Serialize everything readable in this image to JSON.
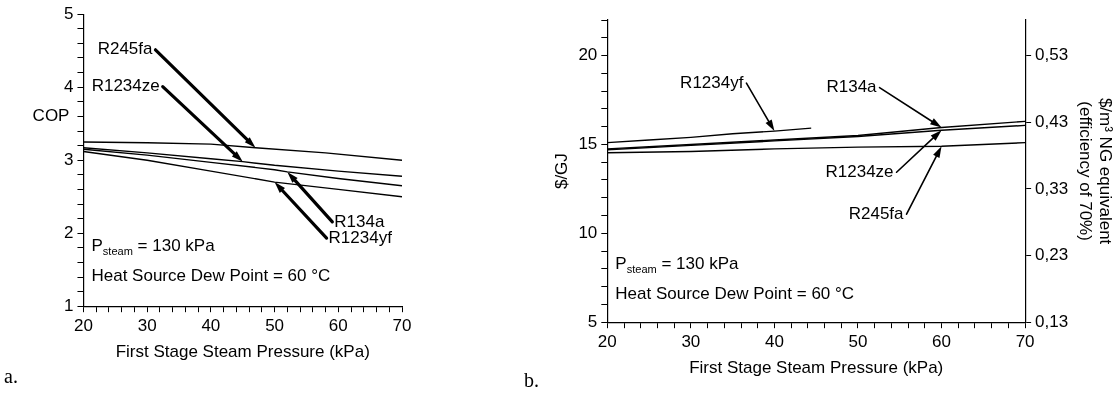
{
  "chart_data": [
    {
      "type": "line",
      "xlabel": "First Stage Steam Pressure (kPa)",
      "ylabel": "COP",
      "xlim": [
        20,
        70
      ],
      "ylim": [
        1,
        5
      ],
      "xticks": [
        20,
        {
          "value": 22,
          "label": null
        },
        {
          "value": 24,
          "label": null
        },
        {
          "value": 26,
          "label": null
        },
        {
          "value": 28,
          "label": null
        },
        30,
        {
          "value": 32,
          "label": null
        },
        {
          "value": 34,
          "label": null
        },
        {
          "value": 36,
          "label": null
        },
        {
          "value": 38,
          "label": null
        },
        40,
        {
          "value": 42,
          "label": null
        },
        {
          "value": 44,
          "label": null
        },
        {
          "value": 46,
          "label": null
        },
        {
          "value": 48,
          "label": null
        },
        50,
        {
          "value": 52,
          "label": null
        },
        {
          "value": 54,
          "label": null
        },
        {
          "value": 56,
          "label": null
        },
        {
          "value": 58,
          "label": null
        },
        60,
        {
          "value": 62,
          "label": null
        },
        {
          "value": 64,
          "label": null
        },
        {
          "value": 66,
          "label": null
        },
        {
          "value": 68,
          "label": null
        },
        70
      ],
      "yticks": [
        1,
        {
          "value": 1.2,
          "label": null
        },
        {
          "value": 1.4,
          "label": null
        },
        {
          "value": 1.6,
          "label": null
        },
        {
          "value": 1.8,
          "label": null
        },
        2,
        {
          "value": 2.2,
          "label": null
        },
        {
          "value": 2.4,
          "label": null
        },
        {
          "value": 2.6,
          "label": null
        },
        {
          "value": 2.8,
          "label": null
        },
        3,
        {
          "value": 3.2,
          "label": null
        },
        {
          "value": 3.4,
          "label": null
        },
        {
          "value": 3.6,
          "label": null
        },
        {
          "value": 3.8,
          "label": null
        },
        4,
        {
          "value": 4.2,
          "label": null
        },
        {
          "value": 4.4,
          "label": null
        },
        {
          "value": 4.6,
          "label": null
        },
        {
          "value": 4.8,
          "label": null
        },
        5
      ],
      "series": [
        {
          "name": "R245fa",
          "color": "#000000",
          "x": [
            20,
            30,
            40,
            47,
            58,
            70
          ],
          "values": [
            3.25,
            3.24,
            3.22,
            3.17,
            3.1,
            3.0
          ]
        },
        {
          "name": "R1234ze",
          "color": "#000000",
          "x": [
            20,
            30,
            40,
            45,
            50,
            60,
            70
          ],
          "values": [
            3.17,
            3.1,
            3.02,
            2.98,
            2.93,
            2.85,
            2.78
          ]
        },
        {
          "name": "R134a",
          "color": "#000000",
          "x": [
            20,
            30,
            40,
            50,
            52,
            60,
            70
          ],
          "values": [
            3.15,
            3.07,
            2.97,
            2.87,
            2.84,
            2.75,
            2.65
          ]
        },
        {
          "name": "R1234yf",
          "color": "#000000",
          "x": [
            20,
            30,
            40,
            50,
            60,
            70
          ],
          "values": [
            3.12,
            3.0,
            2.85,
            2.7,
            2.6,
            2.5
          ]
        }
      ],
      "annotations": [
        "P$_{steam}$ = 130 kPa",
        "Heat Source Dew Point = 60 °C",
        "a."
      ],
      "grid": false,
      "legend": false,
      "marker": "none",
      "line_style": "solid"
    },
    {
      "type": "line",
      "xlabel": "First Stage Steam Pressure (kPa)",
      "ylabel": "$/GJ",
      "y2label": "$/m³ NG equivalent\n(efficiency of 70%)",
      "xlim": [
        20,
        70
      ],
      "ylim": [
        5,
        22
      ],
      "y2lim": [
        0.13,
        0.5833
      ],
      "xticks": [
        20,
        {
          "value": 22,
          "label": null
        },
        {
          "value": 24,
          "label": null
        },
        {
          "value": 26,
          "label": null
        },
        {
          "value": 28,
          "label": null
        },
        30,
        {
          "value": 32,
          "label": null
        },
        {
          "value": 34,
          "label": null
        },
        {
          "value": 36,
          "label": null
        },
        {
          "value": 38,
          "label": null
        },
        40,
        {
          "value": 42,
          "label": null
        },
        {
          "value": 44,
          "label": null
        },
        {
          "value": 46,
          "label": null
        },
        {
          "value": 48,
          "label": null
        },
        50,
        {
          "value": 52,
          "label": null
        },
        {
          "value": 54,
          "label": null
        },
        {
          "value": 56,
          "label": null
        },
        {
          "value": 58,
          "label": null
        },
        60,
        {
          "value": 62,
          "label": null
        },
        {
          "value": 64,
          "label": null
        },
        {
          "value": 66,
          "label": null
        },
        {
          "value": 68,
          "label": null
        },
        70
      ],
      "yticks": [
        5,
        {
          "value": 6,
          "label": null
        },
        {
          "value": 7,
          "label": null
        },
        {
          "value": 8,
          "label": null
        },
        {
          "value": 9,
          "label": null
        },
        10,
        {
          "value": 11,
          "label": null
        },
        {
          "value": 12,
          "label": null
        },
        {
          "value": 13,
          "label": null
        },
        {
          "value": 14,
          "label": null
        },
        15,
        {
          "value": 16,
          "label": null
        },
        {
          "value": 17,
          "label": null
        },
        {
          "value": 18,
          "label": null
        },
        {
          "value": 19,
          "label": null
        },
        20,
        {
          "value": 21,
          "label": null
        },
        {
          "value": 22,
          "label": null
        }
      ],
      "y2ticks": [
        {
          "value": 0.13,
          "label": "0,13"
        },
        {
          "value": 0.23,
          "label": "0,23"
        },
        {
          "value": 0.33,
          "label": "0,33"
        },
        {
          "value": 0.43,
          "label": "0,43"
        },
        {
          "value": 0.53,
          "label": "0,53"
        }
      ],
      "series": [
        {
          "name": "R1234yf",
          "color": "#000000",
          "x": [
            20,
            25,
            30,
            35,
            40,
            44.4
          ],
          "values": [
            15.1,
            15.25,
            15.4,
            15.6,
            15.75,
            15.92
          ]
        },
        {
          "name": "R134a",
          "color": "#000000",
          "x": [
            20,
            30,
            40,
            50,
            60,
            70
          ],
          "values": [
            14.75,
            15.0,
            15.25,
            15.5,
            15.95,
            16.3
          ]
        },
        {
          "name": "R1234ze",
          "color": "#000000",
          "x": [
            20,
            30,
            40,
            50,
            60,
            70
          ],
          "values": [
            14.7,
            14.95,
            15.2,
            15.45,
            15.8,
            16.07
          ]
        },
        {
          "name": "R245fa",
          "color": "#000000",
          "x": [
            20,
            30,
            40,
            50,
            60,
            70
          ],
          "values": [
            14.53,
            14.6,
            14.75,
            14.85,
            14.9,
            15.1
          ]
        }
      ],
      "annotations": [
        "P$_{steam}$ = 130 kPa",
        "Heat Source Dew Point = 60 °C",
        "b."
      ],
      "grid": false,
      "legend": false,
      "marker": "none",
      "line_style": "solid"
    }
  ]
}
